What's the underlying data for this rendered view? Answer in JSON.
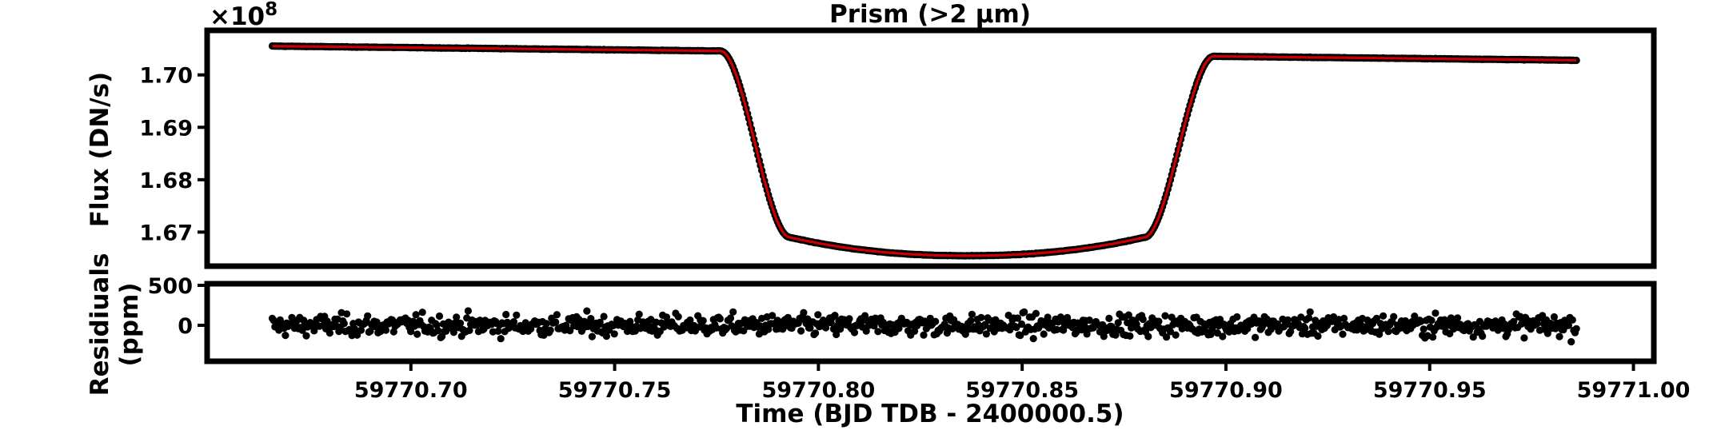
{
  "chart_data": [
    {
      "type": "scatter",
      "title": "Prism (>2 µm)",
      "ylabel": "Flux (DN/s)",
      "offset_label": "×10",
      "offset_exponent": "8",
      "xlim": [
        59770.65,
        59771.005
      ],
      "ylim": [
        1.6635,
        1.7085
      ],
      "yticks": [
        1.67,
        1.68,
        1.69,
        1.7
      ],
      "ytick_labels": [
        "1.67",
        "1.68",
        "1.69",
        "1.70"
      ],
      "transit_model": {
        "x_start": 59770.666,
        "x_end": 59770.986,
        "baseline_start": 1.7055,
        "baseline_end": 1.7028,
        "ingress_start": 59770.776,
        "ingress_end": 59770.793,
        "egress_start": 59770.88,
        "egress_end": 59770.897,
        "floor_edge": 1.669,
        "floor_center": 1.6655
      },
      "series": [
        {
          "role": "data",
          "color": "#000000"
        },
        {
          "role": "model",
          "color": "#cc0000"
        }
      ]
    },
    {
      "type": "scatter",
      "ylabel_line1": "Residiuals",
      "ylabel_line2": "(ppm)",
      "xlabel": "Time (BJD TDB - 2400000.5)",
      "ylim": [
        -450,
        520
      ],
      "yticks": [
        0,
        500
      ],
      "ytick_labels": [
        "0",
        "500"
      ],
      "xlim": [
        59770.65,
        59771.005
      ],
      "xticks": [
        59770.7,
        59770.75,
        59770.8,
        59770.85,
        59770.9,
        59770.95,
        59771.0
      ],
      "xtick_labels": [
        "59770.70",
        "59770.75",
        "59770.80",
        "59770.85",
        "59770.90",
        "59770.95",
        "59771.00"
      ],
      "residual_scatter_ppm": 130,
      "series": [
        {
          "role": "residuals",
          "color": "#000000"
        }
      ]
    }
  ]
}
